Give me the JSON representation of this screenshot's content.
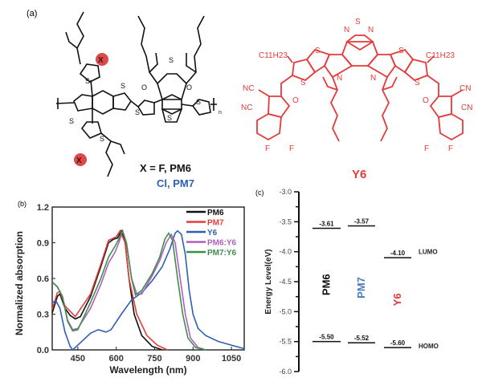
{
  "panel_labels": {
    "a": "(a)",
    "b": "(b)",
    "c": "(c)"
  },
  "structures": {
    "polymer_x_label": "X = F, PM6",
    "polymer_cl_label": "Cl, PM7",
    "x_marker": "X",
    "repeat_n": "n",
    "y6_name": "Y6",
    "y6_atoms": {
      "s": "S",
      "n": "N",
      "o": "O",
      "f": "F",
      "nc": "NC",
      "cn": "CN",
      "alkyl": "C11H23"
    },
    "colors": {
      "polymer": "#111111",
      "y6": "#e53a3a",
      "pm7": "#2f5fb3",
      "x_marker": "#e04848"
    }
  },
  "chart_data": [
    {
      "type": "line",
      "title": "",
      "xlabel": "Wavelength (nm)",
      "ylabel": "Normalized absorption",
      "xlim": [
        350,
        1100
      ],
      "ylim": [
        0,
        1.2
      ],
      "xticks": [
        450,
        600,
        750,
        900,
        1050
      ],
      "yticks": [
        0.0,
        0.3,
        0.6,
        0.9,
        1.2
      ],
      "ytick_labels": [
        "0.0",
        "0.3",
        "0.6",
        "0.9",
        "1.2"
      ],
      "legend_position": "top-right",
      "series": [
        {
          "name": "PM6",
          "color": "#111111",
          "x": [
            350,
            370,
            380,
            400,
            420,
            440,
            460,
            500,
            540,
            570,
            590,
            605,
            620,
            635,
            650,
            670,
            700,
            740,
            780
          ],
          "y": [
            0.31,
            0.45,
            0.47,
            0.35,
            0.29,
            0.26,
            0.28,
            0.45,
            0.7,
            0.9,
            0.93,
            0.94,
            1.0,
            0.9,
            0.6,
            0.3,
            0.12,
            0.03,
            0.0
          ]
        },
        {
          "name": "PM7",
          "color": "#e53a3a",
          "x": [
            350,
            370,
            380,
            400,
            440,
            500,
            540,
            570,
            600,
            615,
            635,
            650,
            680,
            720,
            760,
            800
          ],
          "y": [
            0.34,
            0.48,
            0.49,
            0.37,
            0.28,
            0.47,
            0.72,
            0.92,
            0.95,
            1.0,
            0.9,
            0.6,
            0.3,
            0.12,
            0.04,
            0.0
          ]
        },
        {
          "name": "Y6",
          "color": "#2f5fb3",
          "x": [
            350,
            365,
            380,
            400,
            420,
            430,
            460,
            500,
            530,
            560,
            580,
            620,
            660,
            700,
            740,
            780,
            810,
            830,
            840,
            855,
            870,
            885,
            900,
            920,
            950,
            1000,
            1050,
            1100
          ],
          "y": [
            0.4,
            0.41,
            0.35,
            0.15,
            0.03,
            0.0,
            0.06,
            0.14,
            0.17,
            0.15,
            0.17,
            0.3,
            0.42,
            0.48,
            0.58,
            0.7,
            0.85,
            0.98,
            1.0,
            0.97,
            0.8,
            0.5,
            0.3,
            0.18,
            0.12,
            0.07,
            0.04,
            0.01
          ]
        },
        {
          "name": "PM6:Y6",
          "color": "#b05ec0",
          "x": [
            350,
            370,
            390,
            410,
            430,
            450,
            500,
            540,
            570,
            595,
            610,
            625,
            640,
            660,
            680,
            700,
            740,
            770,
            795,
            815,
            830,
            850,
            870,
            890,
            920,
            950
          ],
          "y": [
            0.57,
            0.53,
            0.45,
            0.25,
            0.17,
            0.18,
            0.35,
            0.55,
            0.73,
            0.82,
            0.9,
            1.0,
            0.9,
            0.6,
            0.47,
            0.47,
            0.62,
            0.75,
            0.9,
            0.97,
            0.9,
            0.6,
            0.3,
            0.1,
            0.02,
            0.0
          ]
        },
        {
          "name": "PM7:Y6",
          "color": "#3e8e4a",
          "x": [
            350,
            370,
            390,
            410,
            430,
            450,
            500,
            540,
            570,
            595,
            610,
            625,
            640,
            660,
            675,
            700,
            740,
            770,
            790,
            805,
            820,
            840,
            860,
            880,
            910,
            950
          ],
          "y": [
            0.57,
            0.53,
            0.45,
            0.24,
            0.16,
            0.17,
            0.4,
            0.6,
            0.78,
            0.87,
            0.93,
            1.0,
            0.9,
            0.6,
            0.46,
            0.5,
            0.64,
            0.78,
            0.93,
            0.98,
            0.92,
            0.6,
            0.3,
            0.1,
            0.02,
            0.0
          ]
        }
      ]
    },
    {
      "type": "energy-level",
      "ylabel": "Energy Level(eV)",
      "ylim": [
        -6.0,
        -3.0
      ],
      "yticks": [
        -3.0,
        -3.5,
        -4.0,
        -4.5,
        -5.0,
        -5.5,
        -6.0
      ],
      "ytick_labels": [
        "-3.0",
        "-3.5",
        "-4.0",
        "-4.5",
        "-5.0",
        "-5.5",
        "-6.0"
      ],
      "lumo_label": "LUMO",
      "homo_label": "HOMO",
      "materials": [
        {
          "name": "PM6",
          "color": "#111111",
          "lumo": -3.61,
          "homo": -5.5,
          "lumo_label": "-3.61",
          "homo_label": "-5.50"
        },
        {
          "name": "PM7",
          "color": "#4a7cc4",
          "lumo": -3.57,
          "homo": -5.52,
          "lumo_label": "-3.57",
          "homo_label": "-5.52"
        },
        {
          "name": "Y6",
          "color": "#e53a3a",
          "lumo": -4.1,
          "homo": -5.6,
          "lumo_label": "-4.10",
          "homo_label": "-5.60"
        }
      ]
    }
  ]
}
